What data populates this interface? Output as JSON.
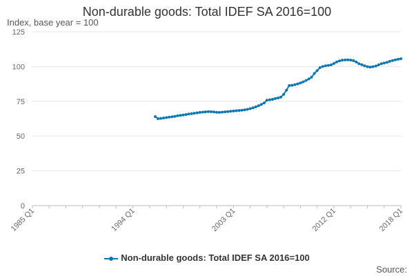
{
  "chart_data": {
    "type": "line",
    "title": "Non-durable goods: Total IDEF SA 2016=100",
    "ylabel": "Index, base year = 100",
    "xlabel": "",
    "ylim": [
      0,
      125
    ],
    "yticks": [
      0,
      25,
      50,
      75,
      100,
      125
    ],
    "xlim": [
      1985,
      2018
    ],
    "xticks": [
      {
        "label": "1985 Q1",
        "x": 1985
      },
      {
        "label": "1994 Q1",
        "x": 1994
      },
      {
        "label": "2003 Q1",
        "x": 2003
      },
      {
        "label": "2012 Q1",
        "x": 2012
      },
      {
        "label": "2018 Q1",
        "x": 2018
      }
    ],
    "grid": true,
    "legend_position": "bottom",
    "series": [
      {
        "name": "Non-durable goods: Total IDEF SA 2016=100",
        "color": "#0b77b5",
        "x": [
          1996.0,
          1996.25,
          1996.5,
          1996.75,
          1997.0,
          1997.25,
          1997.5,
          1997.75,
          1998.0,
          1998.25,
          1998.5,
          1998.75,
          1999.0,
          1999.25,
          1999.5,
          1999.75,
          2000.0,
          2000.25,
          2000.5,
          2000.75,
          2001.0,
          2001.25,
          2001.5,
          2001.75,
          2002.0,
          2002.25,
          2002.5,
          2002.75,
          2003.0,
          2003.25,
          2003.5,
          2003.75,
          2004.0,
          2004.25,
          2004.5,
          2004.75,
          2005.0,
          2005.25,
          2005.5,
          2005.75,
          2006.0,
          2006.25,
          2006.5,
          2006.75,
          2007.0,
          2007.25,
          2007.5,
          2007.75,
          2008.0,
          2008.25,
          2008.5,
          2008.75,
          2009.0,
          2009.25,
          2009.5,
          2009.75,
          2010.0,
          2010.25,
          2010.5,
          2010.75,
          2011.0,
          2011.25,
          2011.5,
          2011.75,
          2012.0,
          2012.25,
          2012.5,
          2012.75,
          2013.0,
          2013.25,
          2013.5,
          2013.75,
          2014.0,
          2014.25,
          2014.5,
          2014.75,
          2015.0,
          2015.25,
          2015.5,
          2015.75,
          2016.0,
          2016.25,
          2016.5,
          2016.75,
          2017.0,
          2017.25,
          2017.5,
          2017.75,
          2018.0
        ],
        "values": [
          64.0,
          62.5,
          62.7,
          63.0,
          63.3,
          63.6,
          63.9,
          64.2,
          64.6,
          64.9,
          65.2,
          65.5,
          65.8,
          66.1,
          66.4,
          66.7,
          67.0,
          67.2,
          67.4,
          67.6,
          67.5,
          67.3,
          67.1,
          67.0,
          67.2,
          67.4,
          67.6,
          67.8,
          68.0,
          68.2,
          68.4,
          68.6,
          68.8,
          69.2,
          69.7,
          70.3,
          71.0,
          71.8,
          72.7,
          73.8,
          75.8,
          76.1,
          76.4,
          77.0,
          77.4,
          78.0,
          80.0,
          83.0,
          86.3,
          86.5,
          86.9,
          87.5,
          88.2,
          89.0,
          90.0,
          91.0,
          92.3,
          95.0,
          97.0,
          99.2,
          100.0,
          100.5,
          100.8,
          101.2,
          102.2,
          103.3,
          104.0,
          104.5,
          104.7,
          104.8,
          104.6,
          104.2,
          103.2,
          102.0,
          101.3,
          100.5,
          99.9,
          99.6,
          99.9,
          100.3,
          101.2,
          102.0,
          102.5,
          103.0,
          103.7,
          104.3,
          104.8,
          105.2,
          105.6
        ]
      }
    ]
  },
  "legend": {
    "label": "Non-durable goods: Total IDEF SA 2016=100"
  },
  "source_label": "Source:"
}
